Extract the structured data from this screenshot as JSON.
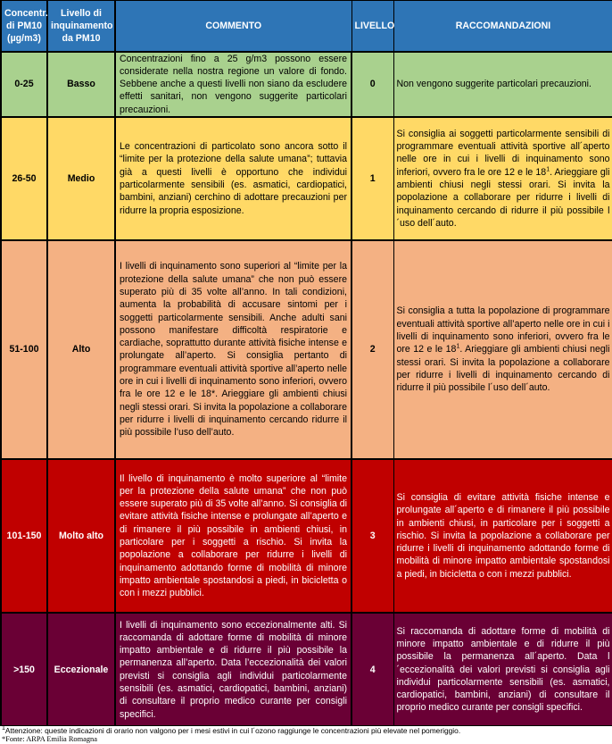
{
  "headers": {
    "concentration": "Concentr. di PM10 (µg/m3)",
    "level_name": "Livello di inquinamento da PM10",
    "comment": "COMMENTO",
    "level": "LIVELLO",
    "recommendations": "RACCOMANDAZIONI"
  },
  "colors": {
    "header": "#2E75B6",
    "basso": "#A9D18E",
    "medio": "#FFD966",
    "alto": "#F4B183",
    "molto_alto": "#C00000",
    "eccezionale": "#6A0035"
  },
  "rows": [
    {
      "range": "0-25",
      "name": "Basso",
      "comment": "Concentrazioni fino a 25 g/m3 possono essere considerate nella nostra regione un valore di fondo. Sebbene anche a questi livelli non siano da escludere effetti sanitari, non vengono suggerite particolari precauzioni.",
      "level": "0",
      "recommendation": "Non vengono suggerite particolari precauzioni."
    },
    {
      "range": "26-50",
      "name": "Medio",
      "comment": "Le concentrazioni di particolato sono ancora sotto il “limite per la protezione della salute umana”; tuttavia già a questi livelli è opportuno che individui particolarmente sensibili (es. asmatici, cardiopatici, bambini, anziani) cerchino di adottare precauzioni per ridurre la propria esposizione.",
      "level": "1",
      "recommendation_a": "Si consiglia ai soggetti particolarmente sensibili di programmare eventuali attività sportive all´aperto nelle ore in cui i livelli di inquinamento sono inferiori, ovvero fra le ore 12 e le 18",
      "sup": "1",
      "recommendation_b": ". Arieggiare gli ambienti chiusi negli stessi orari. Si invita la popolazione a collaborare per ridurre i livelli di inquinamento cercando di ridurre il più possibile l´uso dell´auto."
    },
    {
      "range": "51-100",
      "name": "Alto",
      "comment": "I livelli di inquinamento sono superiori al “limite per la protezione della salute umana” che non può essere superato più di 35 volte all’anno. In tali condizioni, aumenta la probabilità di accusare sintomi per i soggetti particolarmente sensibili. Anche adulti sani possono manifestare difficoltà respiratorie e cardiache, soprattutto durante attività fisiche intense e prolungate all’aperto. Si consiglia pertanto di programmare eventuali attività sportive all’aperto nelle ore in cui i livelli di inquinamento sono inferiori, ovvero fra le ore 12 e le 18*. Arieggiare gli ambienti chiusi negli stessi orari. Si invita la popolazione a collaborare per ridurre i livelli di inquinamento cercando ridurre il più possibile l’uso dell’auto.",
      "level": "2",
      "recommendation_a": "Si consiglia a tutta la popolazione di programmare eventuali attività sportive all’aperto nelle ore in cui i livelli di inquinamento sono inferiori, ovvero fra le ore 12 e le 18",
      "sup": "1",
      "recommendation_b": ". Arieggiare gli ambienti chiusi negli stessi orari. Si invita la popolazione a collaborare per ridurre i livelli di inquinamento cercando di ridurre il più possibile l´uso dell´auto."
    },
    {
      "range": "101-150",
      "name": "Molto alto",
      "comment": "Il livello di inquinamento è molto superiore al “limite per la protezione della salute umana” che non può essere superato più di 35 volte all’anno. Si consiglia di evitare attività fisiche intense e prolungate all’aperto e di rimanere il più possibile in ambienti chiusi, in particolare per i soggetti a rischio. Si invita la popolazione a collaborare per ridurre i livelli di inquinamento adottando forme di mobilità di minore impatto ambientale spostandosi a piedi, in bicicletta o con i mezzi pubblici.",
      "level": "3",
      "recommendation": "Si consiglia di evitare attività fisiche intense e prolungate all´aperto e di rimanere il più possibile in ambienti chiusi, in particolare per i soggetti a rischio. Si invita la popolazione a collaborare per ridurre i livelli di inquinamento adottando forme di mobilità di minore impatto ambientale spostandosi a piedi, in bicicletta o con i mezzi pubblici."
    },
    {
      "range": ">150",
      "name": "Eccezionale",
      "comment": "I livelli di inquinamento sono eccezionalmente alti. Si raccomanda di adottare forme di mobilità di minore impatto ambientale e di ridurre il più possibile la permanenza all’aperto. Data l’eccezionalità dei valori previsti si consiglia agli individui particolarmente sensibili (es. asmatici, cardiopatici, bambini, anziani) di consultare il proprio medico curante per consigli specifici.",
      "level": "4",
      "recommendation": "Si raccomanda di adottare forme di mobilità di minore impatto ambientale e di ridurre il più possibile la permanenza all´aperto. Data l´eccezionalità dei valori previsti si consiglia agli individui particolarmente sensibili (es. asmatici, cardiopatici, bambini, anziani) di consultare il proprio medico curante per consigli specifici."
    }
  ],
  "footnotes": {
    "sup": "1",
    "note": "Attenzione: queste indicazioni di orario non valgono per i mesi estivi in cui l´ozono raggiunge le concentrazioni più elevate nel pomeriggio.",
    "source": "*Fonte: ARPA Emilia Romagna"
  }
}
